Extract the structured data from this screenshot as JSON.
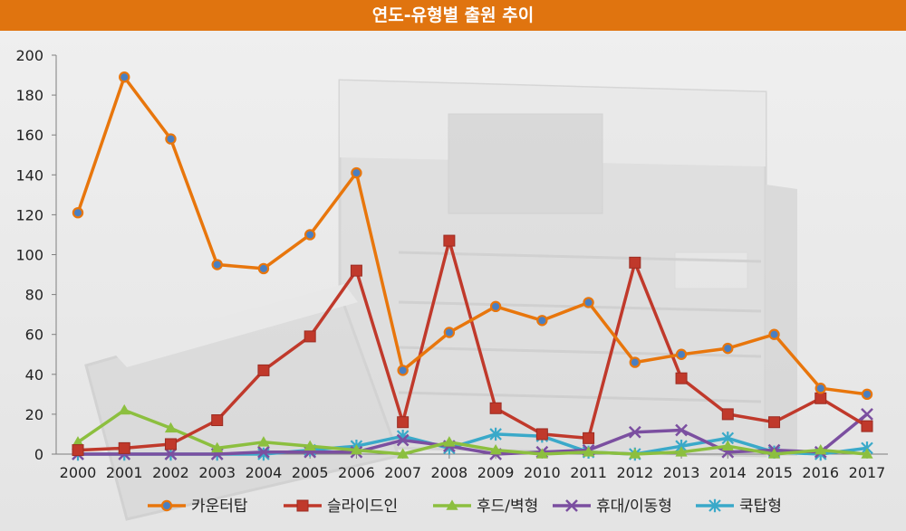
{
  "chart_data": {
    "type": "line",
    "title": "연도-유형별 출원 추이",
    "xlabel": "",
    "ylabel": "",
    "ylim": [
      0,
      200
    ],
    "yticks": [
      0,
      20,
      40,
      60,
      80,
      100,
      120,
      140,
      160,
      180,
      200
    ],
    "categories": [
      "2000",
      "2001",
      "2002",
      "2003",
      "2004",
      "2005",
      "2006",
      "2007",
      "2008",
      "2009",
      "2010",
      "2011",
      "2012",
      "2013",
      "2014",
      "2015",
      "2016",
      "2017"
    ],
    "grid": false,
    "legend": "bottom",
    "series": [
      {
        "name": "카운터탑",
        "color": "#e8760c",
        "marker": "circle",
        "values": [
          121,
          189,
          158,
          95,
          93,
          110,
          141,
          42,
          61,
          74,
          67,
          76,
          46,
          50,
          53,
          60,
          33,
          30
        ]
      },
      {
        "name": "슬라이드인",
        "color": "#c0392b",
        "marker": "square",
        "values": [
          2,
          3,
          5,
          17,
          42,
          59,
          92,
          16,
          107,
          23,
          10,
          8,
          96,
          38,
          20,
          16,
          28,
          14
        ]
      },
      {
        "name": "후드/벽형",
        "color": "#8cbf3f",
        "marker": "triangle",
        "values": [
          6,
          22,
          13,
          3,
          6,
          4,
          2,
          0,
          6,
          2,
          0,
          1,
          0,
          1,
          4,
          0,
          2,
          0
        ]
      },
      {
        "name": "휴대/이동형",
        "color": "#7b4fa0",
        "marker": "x",
        "values": [
          0,
          0,
          0,
          0,
          1,
          1,
          1,
          7,
          4,
          0,
          1,
          2,
          11,
          12,
          1,
          2,
          1,
          20
        ]
      },
      {
        "name": "쿡탑형",
        "color": "#3aa9c9",
        "marker": "star",
        "values": [
          0,
          0,
          0,
          0,
          0,
          2,
          4,
          9,
          3,
          10,
          9,
          1,
          0,
          4,
          8,
          1,
          0,
          3
        ]
      }
    ]
  }
}
